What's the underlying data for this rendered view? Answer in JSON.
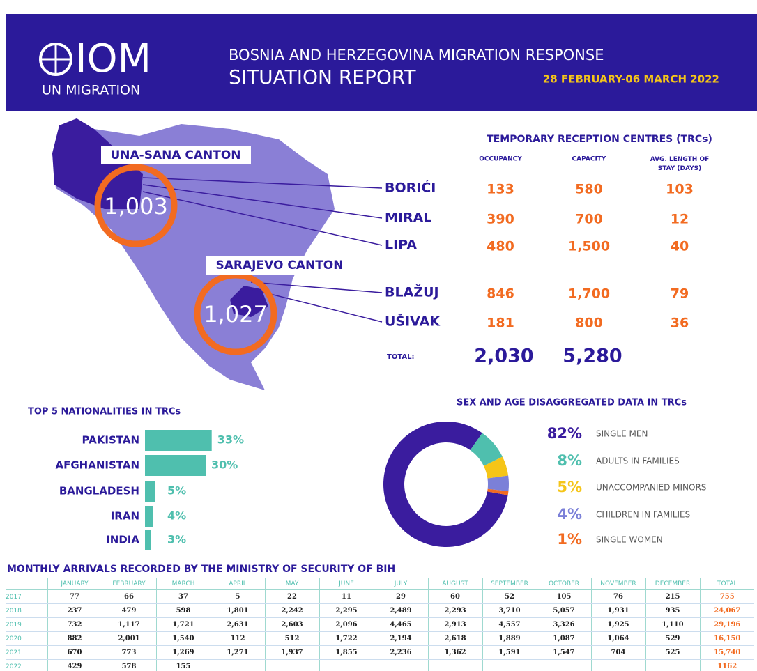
{
  "header": {
    "logo": "IOM",
    "logo_sub": "UN MIGRATION",
    "title": "BOSNIA AND HERZEGOVINA MIGRATION RESPONSE",
    "subtitle": "SITUATION REPORT",
    "date": "28 FEBRUARY-06 MARCH 2022"
  },
  "map": {
    "regions": [
      {
        "label": "UNA-SANA CANTON",
        "value": "1,003"
      },
      {
        "label": "SARAJEVO CANTON",
        "value": "1,027"
      }
    ]
  },
  "trc": {
    "title": "TEMPORARY RECEPTION CENTRES (TRCs)",
    "columns": [
      "OCCUPANCY",
      "CAPACITY",
      "AVG. LENGTH OF STAY (DAYS)"
    ],
    "rows": [
      [
        "BORIĆI",
        "133",
        "580",
        "103"
      ],
      [
        "MIRAL",
        "390",
        "700",
        "12"
      ],
      [
        "LIPA",
        "480",
        "1,500",
        "40"
      ],
      [
        "BLAŽUJ",
        "846",
        "1,700",
        "79"
      ],
      [
        "UŠIVAK",
        "181",
        "800",
        "36"
      ]
    ],
    "total_label": "TOTAL:",
    "totals": [
      "2,030",
      "5,280"
    ]
  },
  "nationalities": {
    "title": "TOP 5 NATIONALITIES IN TRCs",
    "categories": [
      "PAKISTAN",
      "AFGHANISTAN",
      "BANGLADESH",
      "IRAN",
      "INDIA"
    ],
    "values": [
      33,
      30,
      5,
      4,
      3
    ],
    "value_labels": [
      "33%",
      "30%",
      "5%",
      "4%",
      "3%"
    ],
    "color": "#4fbfae"
  },
  "sex_age": {
    "title": "SEX AND AGE DISAGGREGATED DATA IN TRCs",
    "categories": [
      "SINGLE MEN",
      "ADULTS IN FAMILIES",
      "UNACCOMPANIED MINORS",
      "CHILDREN IN FAMILIES",
      "SINGLE WOMEN"
    ],
    "values": [
      82,
      8,
      5,
      4,
      1
    ],
    "value_labels": [
      "82%",
      "8%",
      "5%",
      "4%",
      "1%"
    ],
    "colors": [
      "#3a1c9e",
      "#4fbfae",
      "#f5c518",
      "#7b80d8",
      "#f26b21"
    ]
  },
  "arrivals": {
    "title": "MONTHLY ARRIVALS RECORDED BY THE MINISTRY OF SECURITY OF BIH",
    "columns": [
      "JANUARY",
      "FEBRUARY",
      "MARCH",
      "APRIL",
      "MAY",
      "JUNE",
      "JULY",
      "AUGUST",
      "SEPTEMBER",
      "OCTOBER",
      "NOVEMBER",
      "DECEMBER",
      "TOTAL"
    ],
    "rows": [
      {
        "year": "2017",
        "cells": [
          "77",
          "66",
          "37",
          "5",
          "22",
          "11",
          "29",
          "60",
          "52",
          "105",
          "76",
          "215",
          "755"
        ]
      },
      {
        "year": "2018",
        "cells": [
          "237",
          "479",
          "598",
          "1,801",
          "2,242",
          "2,295",
          "2,489",
          "2,293",
          "3,710",
          "5,057",
          "1,931",
          "935",
          "24,067"
        ]
      },
      {
        "year": "2019",
        "cells": [
          "732",
          "1,117",
          "1,721",
          "2,631",
          "2,603",
          "2,096",
          "4,465",
          "2,913",
          "4,557",
          "3,326",
          "1,925",
          "1,110",
          "29,196"
        ]
      },
      {
        "year": "2020",
        "cells": [
          "882",
          "2,001",
          "1,540",
          "112",
          "512",
          "1,722",
          "2,194",
          "2,618",
          "1,889",
          "1,087",
          "1,064",
          "529",
          "16,150"
        ]
      },
      {
        "year": "2021",
        "cells": [
          "670",
          "773",
          "1,269",
          "1,271",
          "1,937",
          "1,855",
          "2,236",
          "1,362",
          "1,591",
          "1,547",
          "704",
          "525",
          "15,740"
        ]
      },
      {
        "year": "2022",
        "cells": [
          "429",
          "578",
          "155",
          null,
          null,
          null,
          null,
          null,
          null,
          null,
          null,
          null,
          "1162"
        ]
      }
    ]
  }
}
